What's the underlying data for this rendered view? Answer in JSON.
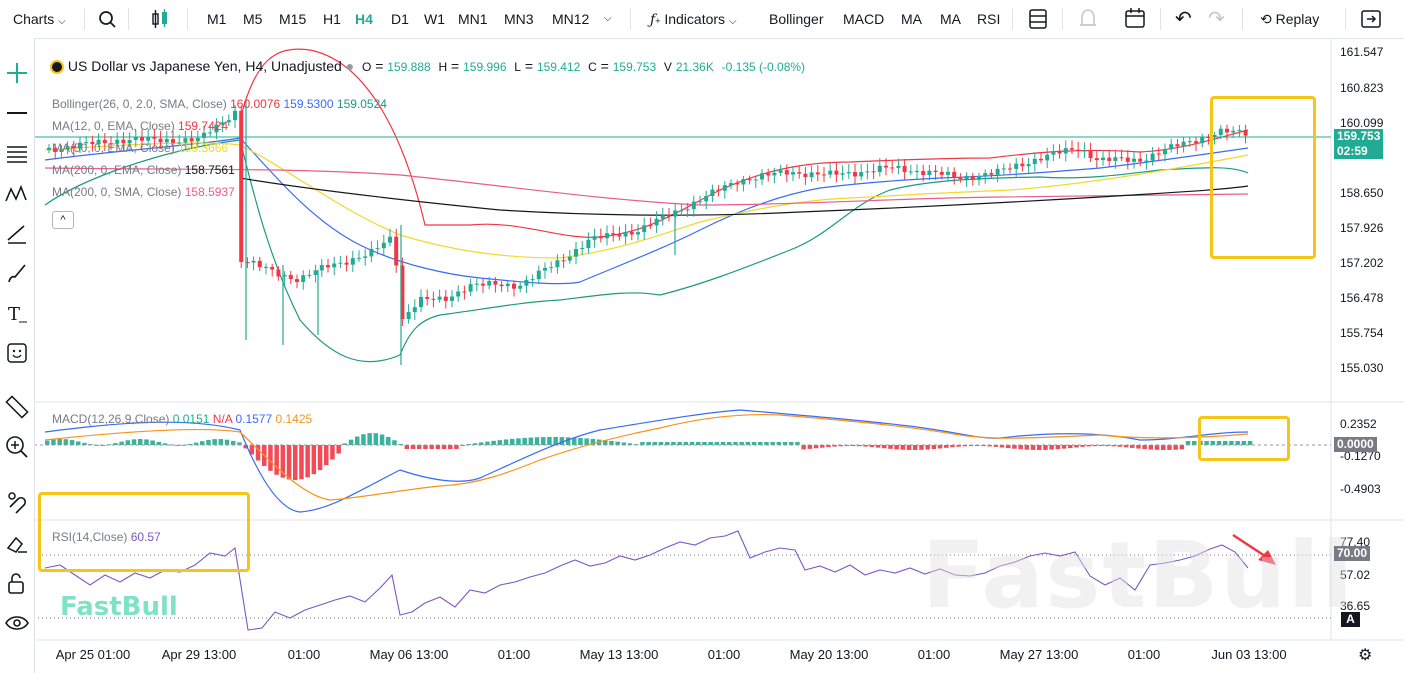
{
  "toolbar": {
    "charts_label": "Charts",
    "timeframes": [
      "M1",
      "M5",
      "M15",
      "H1",
      "H4",
      "D1",
      "W1",
      "MN1",
      "MN3",
      "MN12"
    ],
    "active_timeframe": "H4",
    "indicators_label": "Indicators",
    "quick_indicators": [
      "Bollinger",
      "MACD",
      "MA",
      "MA",
      "RSI"
    ],
    "replay_label": "Replay"
  },
  "symbol": {
    "title": "US Dollar vs Japanese Yen, H4, Unadjusted",
    "o_label": "O",
    "o_value": "159.888",
    "h_label": "H",
    "h_value": "159.996",
    "l_label": "L",
    "l_value": "159.412",
    "c_label": "C",
    "c_value": "159.753",
    "v_label": "V",
    "v_value": "21.36K",
    "change": "-0.135 (-0.08%)"
  },
  "indicators": {
    "bollinger": {
      "name": "Bollinger(26, 0, 2.0, SMA, Close)",
      "v1": "160.0076",
      "v2": "159.5300",
      "v3": "159.0524"
    },
    "ma1": {
      "name": "MA(12, 0, EMA, Close)",
      "v1": "159.7424"
    },
    "ma2": {
      "name": "MA(50, 0, EMA, Close)",
      "v1": "159.3666"
    },
    "ma3": {
      "name": "MA(200, 0, EMA, Close)",
      "v1": "158.7561"
    },
    "ma4": {
      "name": "MA(200, 0, SMA, Close)",
      "v1": "158.5937"
    },
    "collapse_label": "^"
  },
  "macd": {
    "name": "MACD(12,26,9,Close)",
    "v1": "0.0151",
    "v2": "N/A",
    "v3": "0.1577",
    "v4": "0.1425"
  },
  "rsi": {
    "name": "RSI(14,Close)",
    "v1": "60.57"
  },
  "price_axis": [
    "161.547",
    "160.823",
    "160.099",
    "158.650",
    "157.926",
    "157.202",
    "156.478",
    "155.754",
    "155.030"
  ],
  "current_price": {
    "value": "159.753",
    "countdown": "02:59"
  },
  "macd_axis": [
    "0.2352",
    "-0.1270",
    "-0.4903"
  ],
  "macd_zero": "0.0000",
  "rsi_axis": [
    "77.40",
    "57.02",
    "36.65"
  ],
  "rsi_level": "70.00",
  "time_axis": [
    "Apr 25 01:00",
    "Apr 29 13:00",
    "01:00",
    "May 06 13:00",
    "01:00",
    "May 13 13:00",
    "01:00",
    "May 20 13:00",
    "01:00",
    "May 27 13:00",
    "01:00",
    "Jun 03 13:00"
  ],
  "scale_mode": "A",
  "watermark": "FastBull",
  "colors": {
    "up": "#22ab94",
    "down": "#f23645",
    "accent": "#22ab94",
    "highlight": "#f5c518"
  }
}
